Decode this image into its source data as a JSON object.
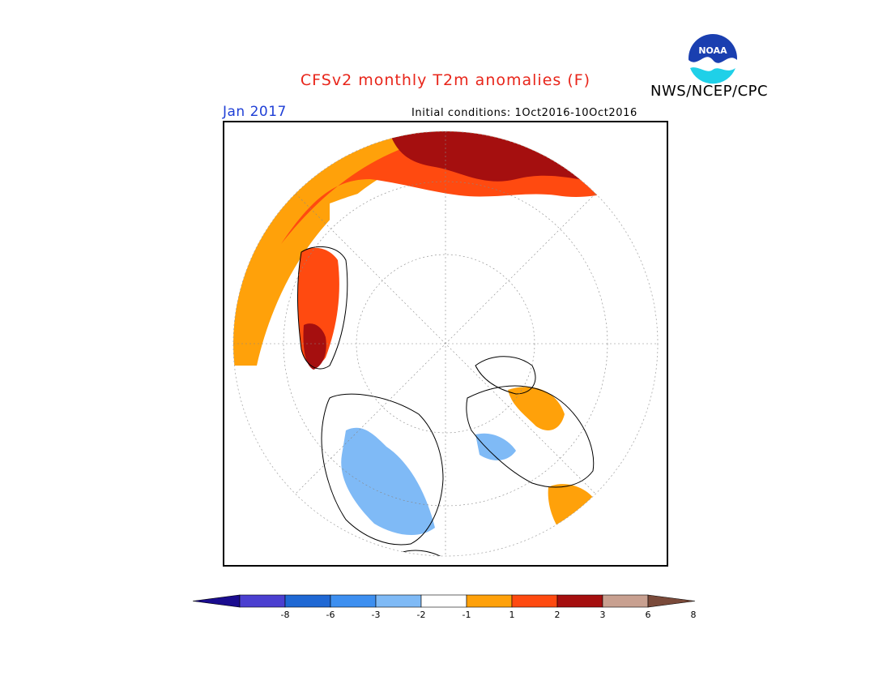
{
  "title": "CFSv2 monthly T2m anomalies (F)",
  "credit": "NWS/NCEP/CPC",
  "logo_text": "NOAA",
  "month_label": "Jan 2017",
  "initial_conditions": "Initial conditions: 1Oct2016-10Oct2016",
  "colors": {
    "title": "#e8251a",
    "month": "#1f3fd6"
  },
  "legend": {
    "labels": [
      "-8",
      "-6",
      "-3",
      "-2",
      "-1",
      "1",
      "2",
      "3",
      "6",
      "8"
    ],
    "colors": [
      "#1a0c8f",
      "#4b3fd0",
      "#1f68d4",
      "#3d8ff0",
      "#7fbaf6",
      "#ffffff",
      "#ffa10a",
      "#ff4a10",
      "#a50f0f",
      "#c8a090",
      "#7a4a3a"
    ]
  }
}
